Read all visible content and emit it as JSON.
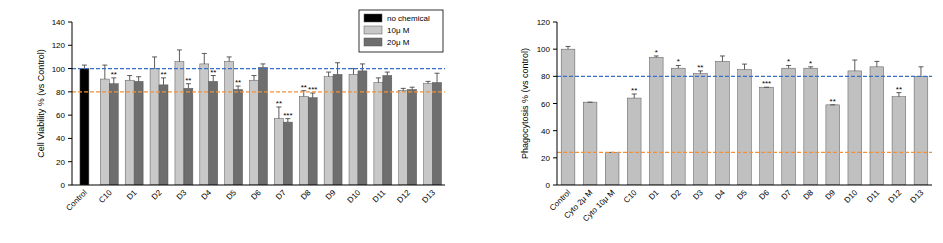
{
  "chart_data": [
    {
      "type": "bar",
      "y_label": "Cell Viability % (vs Control)",
      "categories": [
        "Control",
        "C10",
        "D1",
        "D2",
        "D3",
        "D4",
        "D5",
        "D6",
        "D7",
        "D8",
        "D9",
        "D10",
        "D11",
        "D12",
        "D13"
      ],
      "series": [
        {
          "name": "no chemical",
          "color": "#000000",
          "values": [
            100,
            null,
            null,
            null,
            null,
            null,
            null,
            null,
            null,
            null,
            null,
            null,
            null,
            null,
            null
          ],
          "errors": [
            3,
            null,
            null,
            null,
            null,
            null,
            null,
            null,
            null,
            null,
            null,
            null,
            null,
            null,
            null
          ]
        },
        {
          "name": "10μ M",
          "color": "#c8c8c8",
          "values": [
            null,
            91,
            90,
            100,
            106,
            104,
            106,
            90,
            57,
            76,
            93,
            95,
            88,
            81,
            87
          ],
          "errors": [
            null,
            12,
            4,
            10,
            10,
            9,
            4,
            4,
            10,
            5,
            4,
            5,
            4,
            2,
            2
          ]
        },
        {
          "name": "20μ M",
          "color": "#6e6e6e",
          "values": [
            null,
            87,
            89,
            86,
            83,
            89,
            82,
            101,
            54,
            75,
            95,
            98,
            94,
            82,
            88
          ],
          "errors": [
            null,
            5,
            4,
            6,
            4,
            5,
            3,
            3,
            3,
            4,
            10,
            6,
            3,
            2,
            8
          ]
        }
      ],
      "ylim": [
        0,
        140
      ],
      "yticks": [
        0,
        20,
        40,
        60,
        80,
        100,
        120,
        140
      ],
      "grid": false,
      "legend": "upper right",
      "ref_lines": [
        {
          "value": 100,
          "color": "#3a6fc4"
        },
        {
          "value": 80,
          "color": "#f0923a"
        }
      ],
      "annotations": [
        {
          "category": "C10",
          "series": "20μ M",
          "text": "**"
        },
        {
          "category": "D2",
          "series": "20μ M",
          "text": "**"
        },
        {
          "category": "D3",
          "series": "20μ M",
          "text": "**"
        },
        {
          "category": "D4",
          "series": "20μ M",
          "text": "**"
        },
        {
          "category": "D5",
          "series": "20μ M",
          "text": "**"
        },
        {
          "category": "D7",
          "series": "10μ M",
          "text": "**"
        },
        {
          "category": "D7",
          "series": "20μ M",
          "text": "***"
        },
        {
          "category": "D8",
          "series": "10μ M",
          "text": "**"
        },
        {
          "category": "D8",
          "series": "20μ M",
          "text": "***"
        }
      ]
    },
    {
      "type": "bar",
      "y_label": "Phagocytosis % (vs control)",
      "categories": [
        "Control",
        "Cyto 2μ M",
        "Cyto 10μ M",
        "C10",
        "D1",
        "D2",
        "D3",
        "D4",
        "D5",
        "D6",
        "D7",
        "D8",
        "D9",
        "D10",
        "D11",
        "D12",
        "D13"
      ],
      "color": "#c0c0c0",
      "values": [
        100,
        61,
        24,
        64,
        94,
        86,
        82,
        91,
        85,
        72,
        86,
        86,
        59,
        84,
        87,
        65,
        80
      ],
      "errors": [
        2,
        0,
        0,
        3,
        1,
        2,
        2,
        4,
        4,
        0,
        2,
        1,
        0,
        8,
        4,
        3,
        7
      ],
      "ylim": [
        0,
        120
      ],
      "yticks": [
        0,
        20,
        40,
        60,
        80,
        100,
        120
      ],
      "grid": false,
      "ref_lines": [
        {
          "value": 80,
          "color": "#3a6fc4"
        },
        {
          "value": 24,
          "color": "#f0923a"
        }
      ],
      "annotations": [
        {
          "category": "C10",
          "text": "**"
        },
        {
          "category": "D1",
          "text": "*"
        },
        {
          "category": "D2",
          "text": "*"
        },
        {
          "category": "D3",
          "text": "**"
        },
        {
          "category": "D6",
          "text": "***"
        },
        {
          "category": "D7",
          "text": "*"
        },
        {
          "category": "D8",
          "text": "*"
        },
        {
          "category": "D9",
          "text": "**"
        },
        {
          "category": "D12",
          "text": "**"
        }
      ]
    }
  ]
}
